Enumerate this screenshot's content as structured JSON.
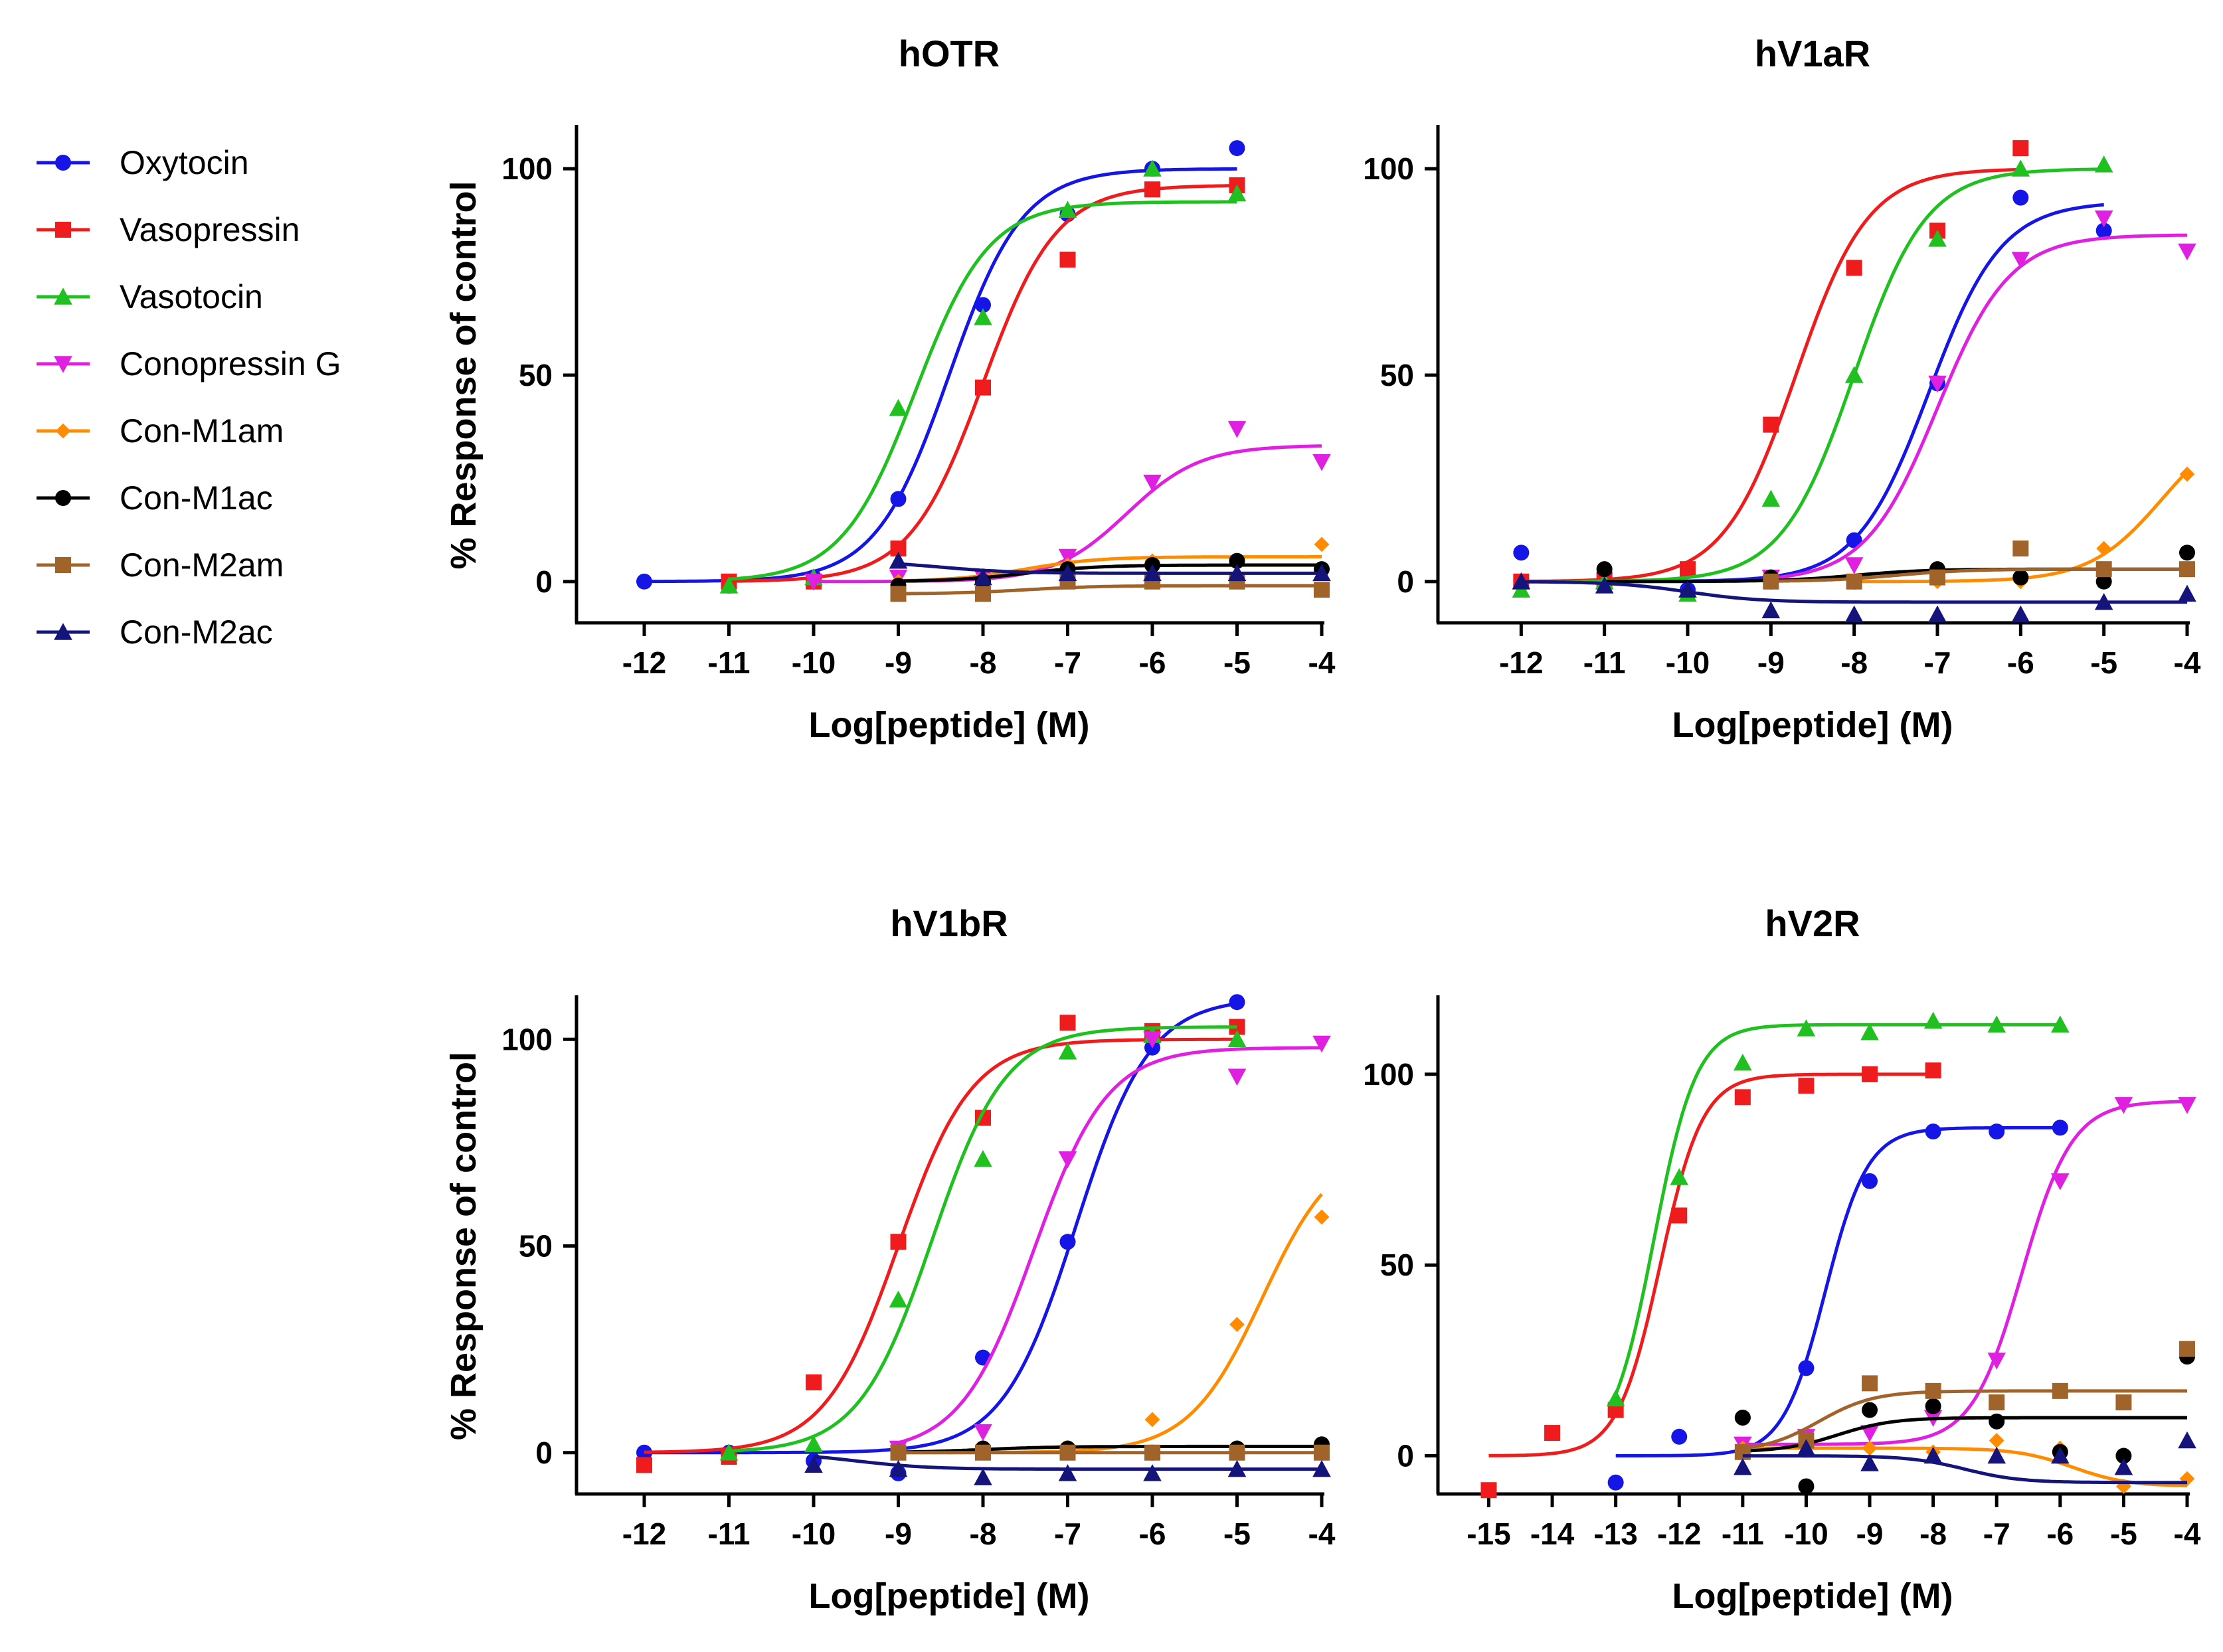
{
  "figure": {
    "legend": [
      {
        "label": "Oxytocin",
        "color": "#1515e6",
        "marker": "circle"
      },
      {
        "label": "Vasopressin",
        "color": "#ee1c1c",
        "marker": "square"
      },
      {
        "label": "Vasotocin",
        "color": "#20c020",
        "marker": "triangle-up"
      },
      {
        "label": "Conopressin G",
        "color": "#e020e0",
        "marker": "triangle-down"
      },
      {
        "label": "Con-M1am",
        "color": "#ff8c00",
        "marker": "diamond"
      },
      {
        "label": "Con-M1ac",
        "color": "#000000",
        "marker": "circle"
      },
      {
        "label": "Con-M2am",
        "color": "#a0642a",
        "marker": "square"
      },
      {
        "label": "Con-M2ac",
        "color": "#14147a",
        "marker": "triangle-up"
      }
    ]
  },
  "chart_data": [
    {
      "type": "line",
      "title": "hOTR",
      "xlabel": "Log[peptide] (M)",
      "ylabel": "% Response of control",
      "xlim": [
        -12.8,
        -4
      ],
      "ylim": [
        -10,
        110
      ],
      "xticks": [
        -12,
        -11,
        -10,
        -9,
        -8,
        -7,
        -6,
        -5,
        -4
      ],
      "yticks": [
        0,
        50,
        100
      ],
      "series": [
        {
          "name": "Oxytocin",
          "x": [
            -12,
            -11,
            -10,
            -9,
            -8,
            -7,
            -6,
            -5
          ],
          "y": [
            0,
            -1,
            1,
            20,
            67,
            89,
            100,
            105
          ],
          "fit": {
            "bottom": 0,
            "top": 100,
            "ec50": -8.4,
            "hill": 1.0
          }
        },
        {
          "name": "Vasopressin",
          "x": [
            -11,
            -10,
            -9,
            -8,
            -7,
            -6,
            -5
          ],
          "y": [
            0,
            0,
            8,
            47,
            78,
            95,
            96
          ],
          "fit": {
            "bottom": 0,
            "top": 96,
            "ec50": -8.0,
            "hill": 1.0
          }
        },
        {
          "name": "Vasotocin",
          "x": [
            -11,
            -10,
            -9,
            -8,
            -7,
            -6,
            -5
          ],
          "y": [
            -1,
            1,
            42,
            64,
            90,
            100,
            94
          ],
          "fit": {
            "bottom": 0,
            "top": 92,
            "ec50": -8.8,
            "hill": 1.0
          }
        },
        {
          "name": "Conopressin G",
          "x": [
            -10,
            -9,
            -8,
            -7,
            -6,
            -5,
            -4
          ],
          "y": [
            0,
            1,
            1,
            6,
            24,
            37,
            29
          ],
          "fit": {
            "bottom": 0,
            "top": 33,
            "ec50": -6.3,
            "hill": 1.0
          }
        },
        {
          "name": "Con-M1am",
          "x": [
            -9,
            -8,
            -7,
            -6,
            -5,
            -4
          ],
          "y": [
            0,
            0,
            4,
            5,
            5,
            9
          ],
          "fit": {
            "bottom": 0,
            "top": 6,
            "ec50": -7.5,
            "hill": 1.0
          }
        },
        {
          "name": "Con-M1ac",
          "x": [
            -9,
            -8,
            -7,
            -6,
            -5,
            -4
          ],
          "y": [
            -1,
            0,
            3,
            4,
            5,
            3
          ],
          "fit": {
            "bottom": 0,
            "top": 4,
            "ec50": -7.5,
            "hill": 1.0
          }
        },
        {
          "name": "Con-M2am",
          "x": [
            -9,
            -8,
            -7,
            -6,
            -5,
            -4
          ],
          "y": [
            -3,
            -3,
            0,
            0,
            0,
            -2
          ],
          "fit": {
            "bottom": -3,
            "top": -1,
            "ec50": -7.5,
            "hill": 1.0
          }
        },
        {
          "name": "Con-M2ac",
          "x": [
            -9,
            -8,
            -7,
            -6,
            -5,
            -4
          ],
          "y": [
            5,
            1,
            2,
            2,
            2,
            2
          ],
          "fit": {
            "bottom": 5,
            "top": 2,
            "ec50": -8.5,
            "hill": 1.0
          }
        }
      ]
    },
    {
      "type": "line",
      "title": "hV1aR",
      "xlabel": "Log[peptide] (M)",
      "ylabel": "",
      "xlim": [
        -13,
        -4
      ],
      "ylim": [
        -10,
        110
      ],
      "xticks": [
        -12,
        -11,
        -10,
        -9,
        -8,
        -7,
        -6,
        -5,
        -4
      ],
      "yticks": [
        0,
        50,
        100
      ],
      "series": [
        {
          "name": "Oxytocin",
          "x": [
            -12,
            -11,
            -10,
            -9,
            -8,
            -7,
            -6,
            -5
          ],
          "y": [
            7,
            2,
            -2,
            0,
            10,
            48,
            93,
            85
          ],
          "fit": {
            "bottom": 0,
            "top": 92,
            "ec50": -7.1,
            "hill": 1.0
          }
        },
        {
          "name": "Vasopressin",
          "x": [
            -12,
            -11,
            -10,
            -9,
            -8,
            -7,
            -6
          ],
          "y": [
            0,
            0,
            3,
            38,
            76,
            85,
            105
          ],
          "fit": {
            "bottom": 0,
            "top": 100,
            "ec50": -8.7,
            "hill": 1.0
          }
        },
        {
          "name": "Vasotocin",
          "x": [
            -12,
            -11,
            -10,
            -9,
            -8,
            -7,
            -6,
            -5
          ],
          "y": [
            -2,
            0,
            -3,
            20,
            50,
            83,
            100,
            101
          ],
          "fit": {
            "bottom": 0,
            "top": 100,
            "ec50": -8.0,
            "hill": 1.0
          }
        },
        {
          "name": "Conopressin G",
          "x": [
            -9,
            -8,
            -7,
            -6,
            -5,
            -4
          ],
          "y": [
            1,
            4,
            48,
            78,
            88,
            80
          ],
          "fit": {
            "bottom": 0,
            "top": 84,
            "ec50": -7.0,
            "hill": 1.0
          }
        },
        {
          "name": "Con-M1am",
          "x": [
            -8,
            -7,
            -6,
            -5,
            -4
          ],
          "y": [
            0,
            0,
            0,
            8,
            26
          ],
          "fit": {
            "bottom": 0,
            "top": 40,
            "ec50": -4.3,
            "hill": 1.0
          }
        },
        {
          "name": "Con-M1ac",
          "x": [
            -11,
            -9,
            -8,
            -7,
            -6,
            -5,
            -4
          ],
          "y": [
            3,
            1,
            0,
            3,
            1,
            0,
            7
          ],
          "fit": {
            "bottom": 0,
            "top": 3,
            "ec50": -8.0,
            "hill": 1.0
          }
        },
        {
          "name": "Con-M2am",
          "x": [
            -9,
            -8,
            -7,
            -6,
            -5,
            -4
          ],
          "y": [
            0,
            0,
            1,
            8,
            3,
            3
          ],
          "fit": {
            "bottom": 0,
            "top": 3,
            "ec50": -7.5,
            "hill": 1.0
          }
        },
        {
          "name": "Con-M2ac",
          "x": [
            -12,
            -11,
            -10,
            -9,
            -8,
            -7,
            -6,
            -5,
            -4
          ],
          "y": [
            0,
            -1,
            -2,
            -7,
            -8,
            -8,
            -8,
            -5,
            -3
          ],
          "fit": {
            "bottom": 0,
            "top": -5,
            "ec50": -10.0,
            "hill": 1.0
          }
        }
      ]
    },
    {
      "type": "line",
      "title": "hV1bR",
      "xlabel": "Log[peptide] (M)",
      "ylabel": "% Response of control",
      "xlim": [
        -12.8,
        -4
      ],
      "ylim": [
        -10,
        110
      ],
      "xticks": [
        -12,
        -11,
        -10,
        -9,
        -8,
        -7,
        -6,
        -5,
        -4
      ],
      "yticks": [
        0,
        50,
        100
      ],
      "series": [
        {
          "name": "Oxytocin",
          "x": [
            -12,
            -11,
            -10,
            -9,
            -8,
            -7,
            -6,
            -5
          ],
          "y": [
            0,
            0,
            -2,
            -5,
            23,
            51,
            98,
            109
          ],
          "fit": {
            "bottom": 0,
            "top": 110,
            "ec50": -6.9,
            "hill": 1.0
          }
        },
        {
          "name": "Vasopressin",
          "x": [
            -12,
            -11,
            -10,
            -9,
            -8,
            -7,
            -6,
            -5
          ],
          "y": [
            -3,
            -1,
            17,
            51,
            81,
            104,
            102,
            103
          ],
          "fit": {
            "bottom": 0,
            "top": 100,
            "ec50": -9.0,
            "hill": 1.0
          }
        },
        {
          "name": "Vasotocin",
          "x": [
            -11,
            -10,
            -9,
            -8,
            -7,
            -6,
            -5
          ],
          "y": [
            0,
            2,
            37,
            71,
            97,
            101,
            100
          ],
          "fit": {
            "bottom": 0,
            "top": 103,
            "ec50": -8.6,
            "hill": 1.0
          }
        },
        {
          "name": "Conopressin G",
          "x": [
            -9,
            -8,
            -7,
            -6,
            -5,
            -4
          ],
          "y": [
            1,
            5,
            71,
            100,
            91,
            99
          ],
          "fit": {
            "bottom": 0,
            "top": 98,
            "ec50": -7.4,
            "hill": 1.0
          }
        },
        {
          "name": "Con-M1am",
          "x": [
            -9,
            -8,
            -7,
            -6,
            -5,
            -4
          ],
          "y": [
            0,
            0,
            0,
            8,
            31,
            57
          ],
          "fit": {
            "bottom": 0,
            "top": 75,
            "ec50": -4.7,
            "hill": 1.0
          }
        },
        {
          "name": "Con-M1ac",
          "x": [
            -9,
            -8,
            -7,
            -6,
            -5,
            -4
          ],
          "y": [
            0,
            1,
            1,
            0,
            1,
            2
          ],
          "fit": {
            "bottom": 0,
            "top": 1.5,
            "ec50": -8.0,
            "hill": 1.0
          }
        },
        {
          "name": "Con-M2am",
          "x": [
            -9,
            -8,
            -7,
            -6,
            -5,
            -4
          ],
          "y": [
            0,
            0,
            0,
            0,
            0,
            0
          ],
          "fit": {
            "bottom": 0,
            "top": 0,
            "ec50": -8.0,
            "hill": 1.0
          }
        },
        {
          "name": "Con-M2ac",
          "x": [
            -10,
            -9,
            -8,
            -7,
            -6,
            -5,
            -4
          ],
          "y": [
            -3,
            -4,
            -6,
            -5,
            -5,
            -4,
            -4
          ],
          "fit": {
            "bottom": 0,
            "top": -4,
            "ec50": -9.5,
            "hill": 1.0
          }
        }
      ]
    },
    {
      "type": "line",
      "title": "hV2R",
      "xlabel": "Log[peptide] (M)",
      "ylabel": "",
      "xlim": [
        -15.8,
        -4
      ],
      "ylim": [
        -10,
        120
      ],
      "xticks": [
        -15,
        -14,
        -13,
        -12,
        -11,
        -10,
        -9,
        -8,
        -7,
        -6,
        -5,
        -4
      ],
      "yticks": [
        0,
        50,
        100
      ],
      "series": [
        {
          "name": "Oxytocin",
          "x": [
            -13,
            -12,
            -11,
            -10,
            -9,
            -8,
            -7,
            -6
          ],
          "y": [
            -7,
            5,
            10,
            23,
            72,
            85,
            85,
            86
          ],
          "fit": {
            "bottom": 0,
            "top": 86,
            "ec50": -9.7,
            "hill": 1.3
          }
        },
        {
          "name": "Vasopressin",
          "x": [
            -15,
            -14,
            -13,
            -12,
            -11,
            -10,
            -9,
            -8
          ],
          "y": [
            -9,
            6,
            12,
            63,
            94,
            97,
            100,
            101
          ],
          "fit": {
            "bottom": 0,
            "top": 100,
            "ec50": -12.3,
            "hill": 1.3
          }
        },
        {
          "name": "Vasotocin",
          "x": [
            -13,
            -12,
            -11,
            -10,
            -9,
            -8,
            -7,
            -6
          ],
          "y": [
            15,
            73,
            103,
            112,
            111,
            114,
            113,
            113
          ],
          "fit": {
            "bottom": 0,
            "top": 113,
            "ec50": -12.4,
            "hill": 1.3
          }
        },
        {
          "name": "Conopressin G",
          "x": [
            -11,
            -10,
            -9,
            -8,
            -7,
            -6,
            -5,
            -4
          ],
          "y": [
            3,
            5,
            6,
            10,
            25,
            72,
            92,
            92
          ],
          "fit": {
            "bottom": 3,
            "top": 93,
            "ec50": -6.6,
            "hill": 1.1
          }
        },
        {
          "name": "Con-M1am",
          "x": [
            -11,
            -10,
            -9,
            -8,
            -7,
            -6,
            -5,
            -4
          ],
          "y": [
            2,
            2,
            2,
            1,
            4,
            2,
            -8,
            -6
          ],
          "fit": {
            "bottom": 2,
            "top": -8,
            "ec50": -5.8,
            "hill": 1.0
          }
        },
        {
          "name": "Con-M1ac",
          "x": [
            -11,
            -10,
            -9,
            -8,
            -7,
            -6,
            -5,
            -4
          ],
          "y": [
            10,
            -8,
            12,
            13,
            9,
            1,
            0,
            26
          ],
          "fit": {
            "bottom": 1,
            "top": 10,
            "ec50": -9.5,
            "hill": 1.0
          }
        },
        {
          "name": "Con-M2am",
          "x": [
            -11,
            -10,
            -9,
            -8,
            -7,
            -6,
            -5,
            -4
          ],
          "y": [
            1,
            4,
            19,
            17,
            14,
            17,
            14,
            28
          ],
          "fit": {
            "bottom": 1,
            "top": 17,
            "ec50": -9.8,
            "hill": 1.0
          }
        },
        {
          "name": "Con-M2ac",
          "x": [
            -11,
            -10,
            -9,
            -8,
            -7,
            -6,
            -5,
            -4
          ],
          "y": [
            -3,
            2,
            -2,
            0,
            0,
            0,
            -3,
            4
          ],
          "fit": {
            "bottom": 0,
            "top": -7,
            "ec50": -7.5,
            "hill": 1.0
          }
        }
      ]
    }
  ]
}
